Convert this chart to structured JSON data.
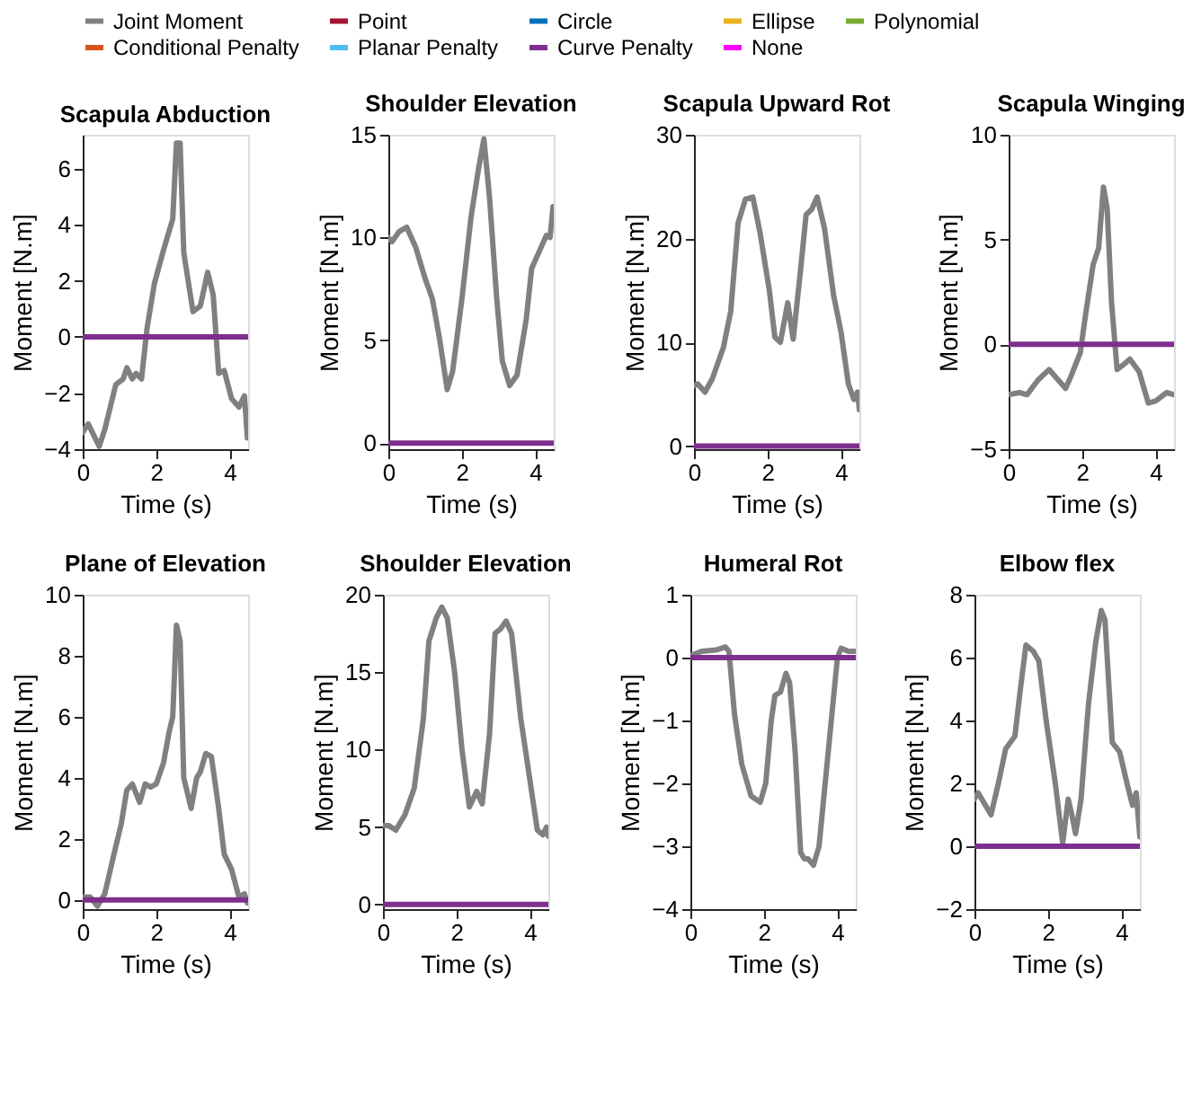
{
  "chart_data": [
    {
      "type": "line",
      "title": "Scapula Abduction",
      "xlabel": "Time (s)",
      "ylabel": "Moment [N.m]",
      "xlim": [
        0,
        4.5
      ],
      "xticks": [
        0,
        2,
        4
      ],
      "ylim": [
        -4,
        7.2
      ],
      "yticks": [
        -4,
        -2,
        0,
        2,
        4,
        6
      ],
      "grid": false,
      "legend": "top",
      "series": [
        {
          "name": "Joint Moment",
          "color": "#808080",
          "x": [
            0,
            0.15,
            0.3,
            0.45,
            0.6,
            0.9,
            1.1,
            1.2,
            1.35,
            1.45,
            1.6,
            1.75,
            1.95,
            2.2,
            2.45,
            2.55,
            2.65,
            2.75,
            3.0,
            3.2,
            3.4,
            3.55,
            3.7,
            3.85,
            4.05,
            4.25,
            4.4,
            4.48
          ],
          "values": [
            -3.4,
            -3.1,
            -3.5,
            -3.9,
            -3.3,
            -1.7,
            -1.5,
            -1.1,
            -1.5,
            -1.3,
            -1.5,
            0.3,
            1.9,
            3.1,
            4.2,
            6.9,
            6.9,
            3.0,
            0.9,
            1.1,
            2.3,
            1.5,
            -1.3,
            -1.2,
            -2.2,
            -2.5,
            -2.1,
            -3.6
          ]
        },
        {
          "name": "Point",
          "color": "#a2142f",
          "values": [
            null
          ]
        },
        {
          "name": "Circle",
          "color": "#0072bd",
          "values": [
            null
          ]
        },
        {
          "name": "Ellipse",
          "color": "#edb120",
          "values": [
            null
          ]
        },
        {
          "name": "Polynomial",
          "color": "#77ac30",
          "values": [
            null
          ]
        },
        {
          "name": "Conditional Penalty",
          "color": "#d95319",
          "values": [
            null
          ]
        },
        {
          "name": "Planar Penalty",
          "color": "#4dbeee",
          "values": [
            null
          ]
        },
        {
          "name": "Curve Penalty",
          "color": "#7e2f8e",
          "x": [
            0,
            4.5
          ],
          "values": [
            0,
            0
          ]
        },
        {
          "name": "None",
          "color": "#ff00ff",
          "values": [
            null
          ]
        }
      ]
    },
    {
      "type": "line",
      "title": "Shoulder Elevation",
      "xlabel": "Time (s)",
      "ylabel": "Moment [N.m]",
      "xlim": [
        0,
        4.5
      ],
      "xticks": [
        0,
        2,
        4
      ],
      "ylim": [
        -0.3,
        15
      ],
      "yticks": [
        0,
        5,
        10,
        15
      ],
      "grid": false,
      "legend": "top",
      "series": [
        {
          "name": "Joint Moment",
          "color": "#808080",
          "x": [
            0,
            0.1,
            0.3,
            0.5,
            0.75,
            1.0,
            1.2,
            1.4,
            1.6,
            1.75,
            2.0,
            2.25,
            2.45,
            2.6,
            2.75,
            2.95,
            3.1,
            3.3,
            3.5,
            3.75,
            3.9,
            4.1,
            4.3,
            4.4,
            4.48
          ],
          "values": [
            10.0,
            9.8,
            10.3,
            10.5,
            9.5,
            8,
            7,
            5,
            2.6,
            3.5,
            7,
            11,
            13.3,
            14.8,
            12,
            7,
            4,
            2.8,
            3.3,
            6,
            8.5,
            9.3,
            10.1,
            10.0,
            11.5
          ]
        },
        {
          "name": "Curve Penalty",
          "color": "#7e2f8e",
          "x": [
            0,
            4.5
          ],
          "values": [
            0,
            0
          ]
        }
      ]
    },
    {
      "type": "line",
      "title": "Scapula Upward Rot",
      "xlabel": "Time (s)",
      "ylabel": "Moment [N.m]",
      "xlim": [
        0,
        4.5
      ],
      "xticks": [
        0,
        2,
        4
      ],
      "ylim": [
        -0.3,
        30
      ],
      "yticks": [
        0,
        10,
        20,
        30
      ],
      "grid": false,
      "legend": "top",
      "series": [
        {
          "name": "Joint Moment",
          "color": "#808080",
          "x": [
            0,
            0.1,
            0.3,
            0.5,
            0.8,
            1.0,
            1.2,
            1.4,
            1.6,
            1.8,
            2.05,
            2.2,
            2.35,
            2.55,
            2.7,
            2.9,
            3.05,
            3.2,
            3.35,
            3.55,
            3.8,
            4.0,
            4.2,
            4.35,
            4.45,
            4.5
          ],
          "values": [
            5.8,
            6,
            5.2,
            6.5,
            9.5,
            13,
            21.5,
            23.8,
            24,
            20.5,
            15,
            10.5,
            10,
            13.8,
            10.3,
            17,
            22.3,
            22.8,
            24,
            21,
            14.5,
            11,
            6,
            4.5,
            5.2,
            3.5
          ]
        },
        {
          "name": "Curve Penalty",
          "color": "#7e2f8e",
          "x": [
            0,
            4.5
          ],
          "values": [
            0,
            0
          ]
        }
      ]
    },
    {
      "type": "line",
      "title": "Scapula Winging",
      "xlabel": "Time (s)",
      "ylabel": "Moment [N.m]",
      "xlim": [
        0,
        4.5
      ],
      "xticks": [
        0,
        2,
        4
      ],
      "ylim": [
        -5,
        10
      ],
      "yticks": [
        -5,
        0,
        5,
        10
      ],
      "grid": false,
      "legend": "top",
      "series": [
        {
          "name": "Joint Moment",
          "color": "#808080",
          "x": [
            0,
            0.3,
            0.5,
            0.8,
            1.1,
            1.3,
            1.55,
            1.7,
            1.95,
            2.1,
            2.3,
            2.45,
            2.58,
            2.68,
            2.8,
            2.95,
            3.1,
            3.3,
            3.55,
            3.8,
            4.0,
            4.3,
            4.5
          ],
          "values": [
            -2.4,
            -2.3,
            -2.4,
            -1.7,
            -1.2,
            -1.6,
            -2.1,
            -1.5,
            -0.4,
            1.5,
            3.8,
            4.6,
            7.5,
            6.5,
            2,
            -1.2,
            -1.0,
            -0.7,
            -1.3,
            -2.8,
            -2.7,
            -2.3,
            -2.4
          ]
        },
        {
          "name": "Curve Penalty",
          "color": "#7e2f8e",
          "x": [
            0,
            4.5
          ],
          "values": [
            0,
            0
          ]
        }
      ]
    },
    {
      "type": "line",
      "title": "Plane of Elevation",
      "xlabel": "Time (s)",
      "ylabel": "Moment [N.m]",
      "xlim": [
        0,
        4.5
      ],
      "xticks": [
        0,
        2,
        4
      ],
      "ylim": [
        -0.3,
        10
      ],
      "yticks": [
        0,
        2,
        4,
        6,
        8,
        10
      ],
      "grid": false,
      "legend": "top",
      "series": [
        {
          "name": "Joint Moment",
          "color": "#808080",
          "x": [
            0,
            0.2,
            0.4,
            0.6,
            0.85,
            1.05,
            1.2,
            1.35,
            1.55,
            1.7,
            1.85,
            2.0,
            2.2,
            2.35,
            2.45,
            2.55,
            2.65,
            2.75,
            2.95,
            3.1,
            3.2,
            3.35,
            3.5,
            3.7,
            3.85,
            4.05,
            4.25,
            4.4,
            4.48
          ],
          "values": [
            0.1,
            0.1,
            -0.2,
            0.2,
            1.5,
            2.5,
            3.6,
            3.8,
            3.2,
            3.8,
            3.7,
            3.8,
            4.5,
            5.5,
            6.0,
            9.0,
            8.5,
            4,
            3.0,
            4.0,
            4.2,
            4.8,
            4.7,
            3,
            1.5,
            1.0,
            0.1,
            0.2,
            -0.1
          ]
        },
        {
          "name": "Curve Penalty",
          "color": "#7e2f8e",
          "x": [
            0,
            4.5
          ],
          "values": [
            0,
            0
          ]
        }
      ]
    },
    {
      "type": "line",
      "title": "Shoulder Elevation",
      "xlabel": "Time (s)",
      "ylabel": "Moment [N.m]",
      "xlim": [
        0,
        4.5
      ],
      "xticks": [
        0,
        2,
        4
      ],
      "ylim": [
        -0.3,
        20
      ],
      "yticks": [
        0,
        5,
        10,
        15,
        20
      ],
      "grid": false,
      "legend": "top",
      "series": [
        {
          "name": "Joint Moment",
          "color": "#808080",
          "x": [
            0,
            0.15,
            0.35,
            0.6,
            0.85,
            1.1,
            1.25,
            1.45,
            1.6,
            1.75,
            1.95,
            2.15,
            2.35,
            2.55,
            2.7,
            2.9,
            3.05,
            3.2,
            3.35,
            3.5,
            3.75,
            4.0,
            4.2,
            4.35,
            4.45,
            4.5
          ],
          "values": [
            5.1,
            5.1,
            4.8,
            5.8,
            7.5,
            12,
            17,
            18.5,
            19.2,
            18.5,
            15,
            10,
            6.3,
            7.3,
            6.5,
            11,
            17.5,
            17.8,
            18.3,
            17.5,
            12,
            8,
            4.8,
            4.5,
            5.0,
            4.4
          ]
        },
        {
          "name": "Curve Penalty",
          "color": "#7e2f8e",
          "x": [
            0,
            4.5
          ],
          "values": [
            0,
            0
          ]
        }
      ]
    },
    {
      "type": "line",
      "title": "Humeral Rot",
      "xlabel": "Time (s)",
      "ylabel": "Moment [N.m]",
      "xlim": [
        0,
        4.5
      ],
      "xticks": [
        0,
        2,
        4
      ],
      "ylim": [
        -4,
        1
      ],
      "yticks": [
        -4,
        -3,
        -2,
        -1,
        0,
        1
      ],
      "grid": false,
      "legend": "top",
      "series": [
        {
          "name": "Joint Moment",
          "color": "#808080",
          "x": [
            0,
            0.3,
            0.7,
            0.95,
            1.05,
            1.2,
            1.4,
            1.65,
            1.9,
            2.05,
            2.2,
            2.3,
            2.45,
            2.6,
            2.7,
            2.85,
            3.0,
            3.1,
            3.2,
            3.35,
            3.5,
            3.75,
            4.0,
            4.1,
            4.3,
            4.5
          ],
          "values": [
            0.03,
            0.1,
            0.12,
            0.17,
            0.1,
            -0.9,
            -1.7,
            -2.2,
            -2.3,
            -2.0,
            -1.0,
            -0.6,
            -0.55,
            -0.25,
            -0.4,
            -1.5,
            -3.1,
            -3.2,
            -3.2,
            -3.3,
            -3.0,
            -1.5,
            0.0,
            0.15,
            0.1,
            0.1
          ]
        },
        {
          "name": "Curve Penalty",
          "color": "#7e2f8e",
          "x": [
            0,
            4.5
          ],
          "values": [
            0,
            0
          ]
        }
      ]
    },
    {
      "type": "line",
      "title": "Elbow flex",
      "xlabel": "Time (s)",
      "ylabel": "Moment [N.m]",
      "xlim": [
        0,
        4.5
      ],
      "xticks": [
        0,
        2,
        4
      ],
      "ylim": [
        -2,
        8
      ],
      "yticks": [
        -2,
        0,
        2,
        4,
        6,
        8
      ],
      "grid": false,
      "legend": "top",
      "series": [
        {
          "name": "Joint Moment",
          "color": "#808080",
          "x": [
            0,
            0.1,
            0.2,
            0.45,
            0.65,
            0.85,
            1.1,
            1.25,
            1.4,
            1.6,
            1.75,
            1.95,
            2.2,
            2.4,
            2.55,
            2.65,
            2.75,
            2.9,
            3.1,
            3.3,
            3.45,
            3.55,
            3.75,
            3.95,
            4.15,
            4.3,
            4.4,
            4.5
          ],
          "values": [
            1.5,
            1.7,
            1.5,
            1.0,
            2,
            3.1,
            3.5,
            5,
            6.4,
            6.2,
            5.9,
            4,
            2,
            0.1,
            1.5,
            1.0,
            0.4,
            1.5,
            4.5,
            6.5,
            7.5,
            7.2,
            3.3,
            3.0,
            2,
            1.3,
            1.7,
            0.3
          ]
        },
        {
          "name": "Curve Penalty",
          "color": "#7e2f8e",
          "x": [
            0,
            4.5
          ],
          "values": [
            0,
            0
          ]
        }
      ]
    }
  ]
}
